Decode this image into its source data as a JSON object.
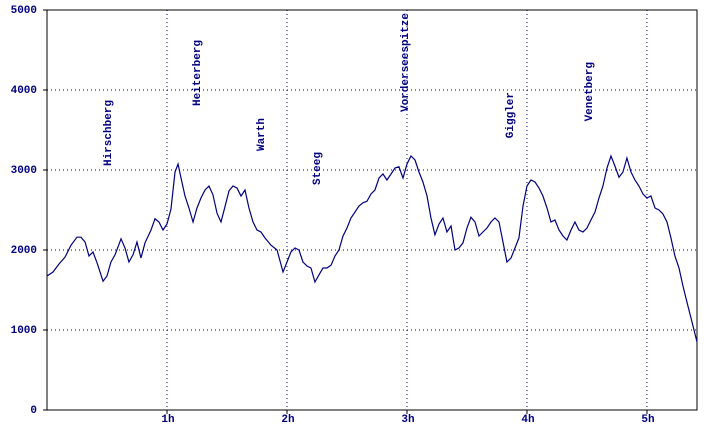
{
  "chart_data": {
    "type": "line",
    "annotations": [
      "Hirschberg",
      "Heiterberg",
      "Warth",
      "Steeg",
      "Vorderseespitze",
      "Giggler",
      "Venetberg"
    ],
    "x": [
      0,
      0.05,
      0.1,
      0.15,
      0.2,
      0.25,
      0.283,
      0.317,
      0.35,
      0.383,
      0.417,
      0.467,
      0.5,
      0.533,
      0.567,
      0.617,
      0.65,
      0.683,
      0.717,
      0.75,
      0.783,
      0.817,
      0.867,
      0.9,
      0.933,
      0.967,
      1.0,
      1.033,
      1.067,
      1.092,
      1.117,
      1.15,
      1.183,
      1.217,
      1.25,
      1.283,
      1.317,
      1.35,
      1.383,
      1.417,
      1.45,
      1.483,
      1.517,
      1.55,
      1.583,
      1.617,
      1.65,
      1.683,
      1.717,
      1.75,
      1.783,
      1.817,
      1.867,
      1.917,
      1.967,
      2.0,
      2.033,
      2.067,
      2.1,
      2.133,
      2.167,
      2.2,
      2.233,
      2.267,
      2.3,
      2.333,
      2.367,
      2.4,
      2.433,
      2.467,
      2.5,
      2.533,
      2.567,
      2.6,
      2.633,
      2.667,
      2.7,
      2.733,
      2.767,
      2.8,
      2.833,
      2.867,
      2.9,
      2.933,
      2.967,
      3.0,
      3.033,
      3.067,
      3.1,
      3.133,
      3.167,
      3.2,
      3.233,
      3.267,
      3.3,
      3.333,
      3.367,
      3.4,
      3.433,
      3.467,
      3.5,
      3.533,
      3.567,
      3.6,
      3.633,
      3.667,
      3.7,
      3.733,
      3.767,
      3.8,
      3.833,
      3.867,
      3.9,
      3.933,
      3.967,
      4.0,
      4.033,
      4.067,
      4.1,
      4.133,
      4.167,
      4.2,
      4.233,
      4.267,
      4.3,
      4.333,
      4.367,
      4.4,
      4.433,
      4.467,
      4.5,
      4.533,
      4.567,
      4.6,
      4.633,
      4.667,
      4.7,
      4.733,
      4.767,
      4.8,
      4.833,
      4.867,
      4.9,
      4.933,
      4.967,
      5.0,
      5.033,
      5.067,
      5.1,
      5.133,
      5.167,
      5.2,
      5.233,
      5.267,
      5.3,
      5.333,
      5.367,
      5.417
    ],
    "values": [
      1675,
      1725,
      1825,
      1910,
      2060,
      2160,
      2160,
      2100,
      1925,
      1975,
      1840,
      1610,
      1675,
      1850,
      1940,
      2140,
      2025,
      1850,
      1940,
      2100,
      1900,
      2090,
      2250,
      2390,
      2350,
      2250,
      2325,
      2510,
      2975,
      3075,
      2900,
      2675,
      2525,
      2350,
      2525,
      2650,
      2750,
      2800,
      2690,
      2460,
      2350,
      2540,
      2740,
      2800,
      2775,
      2675,
      2750,
      2525,
      2350,
      2250,
      2225,
      2150,
      2060,
      2000,
      1725,
      1850,
      1975,
      2025,
      2000,
      1850,
      1800,
      1775,
      1600,
      1690,
      1775,
      1775,
      1810,
      1925,
      2000,
      2175,
      2275,
      2400,
      2475,
      2550,
      2590,
      2610,
      2700,
      2750,
      2900,
      2950,
      2875,
      2950,
      3025,
      3040,
      2900,
      3075,
      3175,
      3125,
      2975,
      2850,
      2675,
      2400,
      2190,
      2325,
      2400,
      2225,
      2300,
      2000,
      2025,
      2090,
      2275,
      2410,
      2350,
      2175,
      2225,
      2275,
      2350,
      2400,
      2350,
      2100,
      1850,
      1900,
      2025,
      2150,
      2550,
      2800,
      2875,
      2850,
      2775,
      2675,
      2525,
      2350,
      2375,
      2250,
      2175,
      2125,
      2250,
      2350,
      2250,
      2225,
      2275,
      2375,
      2475,
      2650,
      2800,
      3025,
      3175,
      3050,
      2910,
      2975,
      3150,
      2975,
      2875,
      2800,
      2700,
      2650,
      2675,
      2525,
      2500,
      2450,
      2350,
      2150,
      1925,
      1775,
      1550,
      1350,
      1150,
      850
    ],
    "color": "#000080",
    "xlim": [
      0,
      5.417
    ],
    "xticks": [
      {
        "value": 1,
        "label": "1h"
      },
      {
        "value": 2,
        "label": "2h"
      },
      {
        "value": 3,
        "label": "3h"
      },
      {
        "value": 4,
        "label": "4h"
      },
      {
        "value": 5,
        "label": "5h"
      }
    ],
    "ylim": [
      0,
      5000
    ],
    "yticks": [
      0,
      1000,
      2000,
      3000,
      4000,
      5000
    ],
    "grid": true
  }
}
